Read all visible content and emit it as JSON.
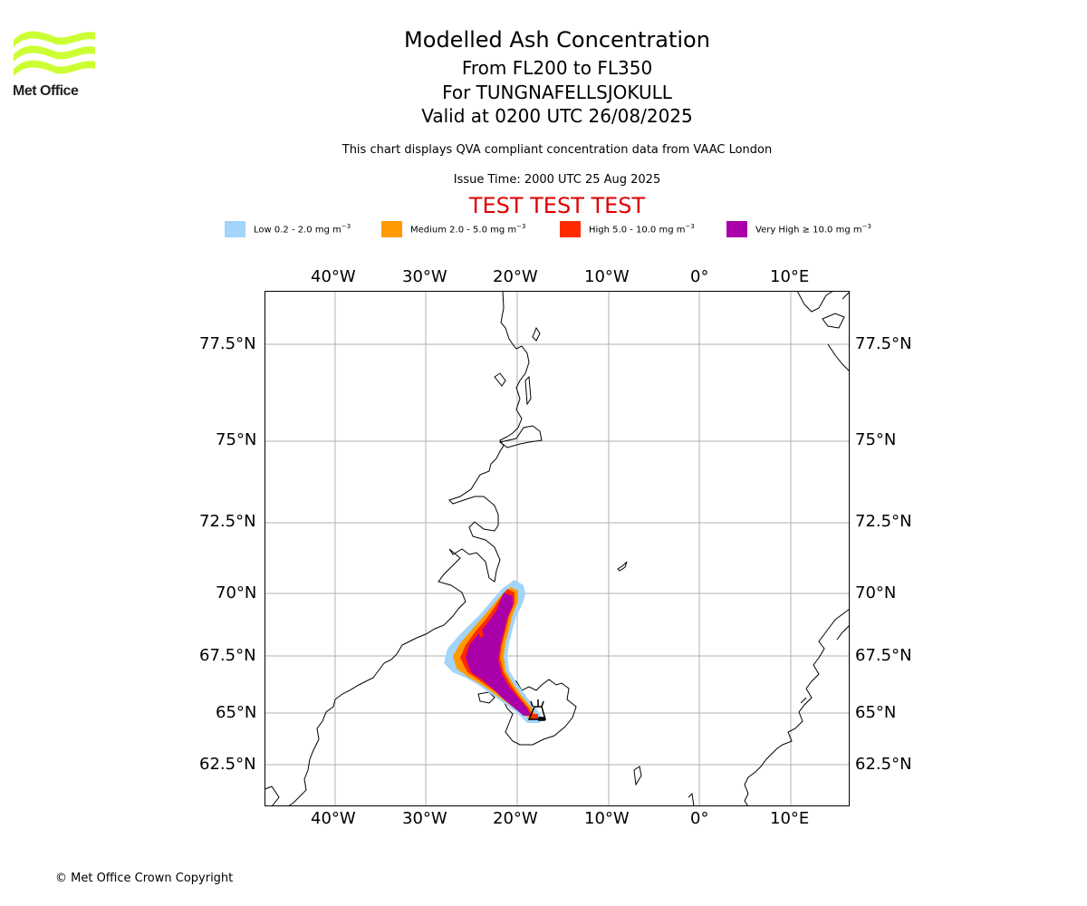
{
  "header": {
    "title": "Modelled Ash Concentration",
    "subtitle_levels": "From FL200 to FL350",
    "subtitle_volcano": "For TUNGNAFELLSJOKULL",
    "subtitle_valid": "Valid at 0200 UTC 26/08/2025",
    "note": "This chart displays QVA compliant concentration data from VAAC London",
    "issue_time": "Issue Time: 2000 UTC 25 Aug 2025",
    "test_banner": "TEST TEST TEST"
  },
  "logo": {
    "text": "Met Office",
    "color": "#ccff33"
  },
  "legend": {
    "unit_suffix": "mg m",
    "unit_power": "−3",
    "items": [
      {
        "label": "Low 0.2 - 2.0",
        "color": "#a3d4fa"
      },
      {
        "label": "Medium 2.0 - 5.0",
        "color": "#ff9b00"
      },
      {
        "label": "High 5.0 - 10.0",
        "color": "#ff2a00"
      },
      {
        "label": "Very High  ≥  10.0",
        "color": "#aa00aa"
      }
    ]
  },
  "map": {
    "lon_ticks": [
      "40°W",
      "30°W",
      "20°W",
      "10°W",
      "0°",
      "10°E"
    ],
    "lat_ticks": [
      "77.5°N",
      "75°N",
      "72.5°N",
      "70°N",
      "67.5°N",
      "65°N",
      "62.5°N"
    ]
  },
  "footer": {
    "copyright": "© Met Office Crown Copyright"
  },
  "colors": {
    "test_banner": "#dd0000",
    "grid": "#b0b0b0"
  }
}
